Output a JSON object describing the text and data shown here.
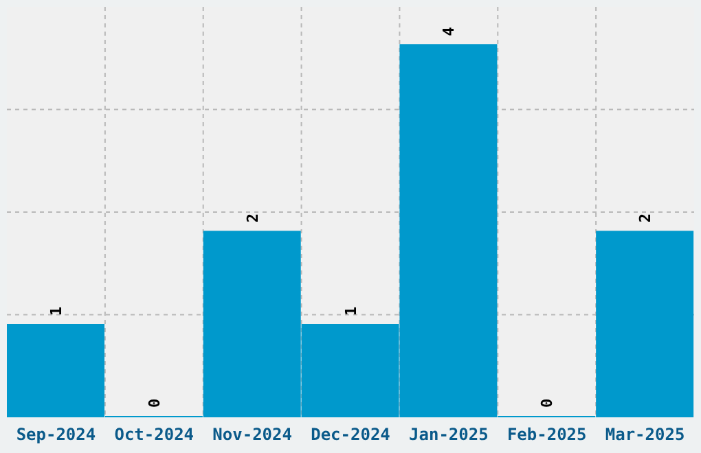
{
  "chart_data": {
    "type": "bar",
    "categories": [
      "Sep-2024",
      "Oct-2024",
      "Nov-2024",
      "Dec-2024",
      "Jan-2025",
      "Feb-2025",
      "Mar-2025"
    ],
    "values": [
      1,
      0,
      2,
      1,
      4,
      0,
      2
    ],
    "color": "#0099cc",
    "data_labels": true,
    "grid": true
  }
}
